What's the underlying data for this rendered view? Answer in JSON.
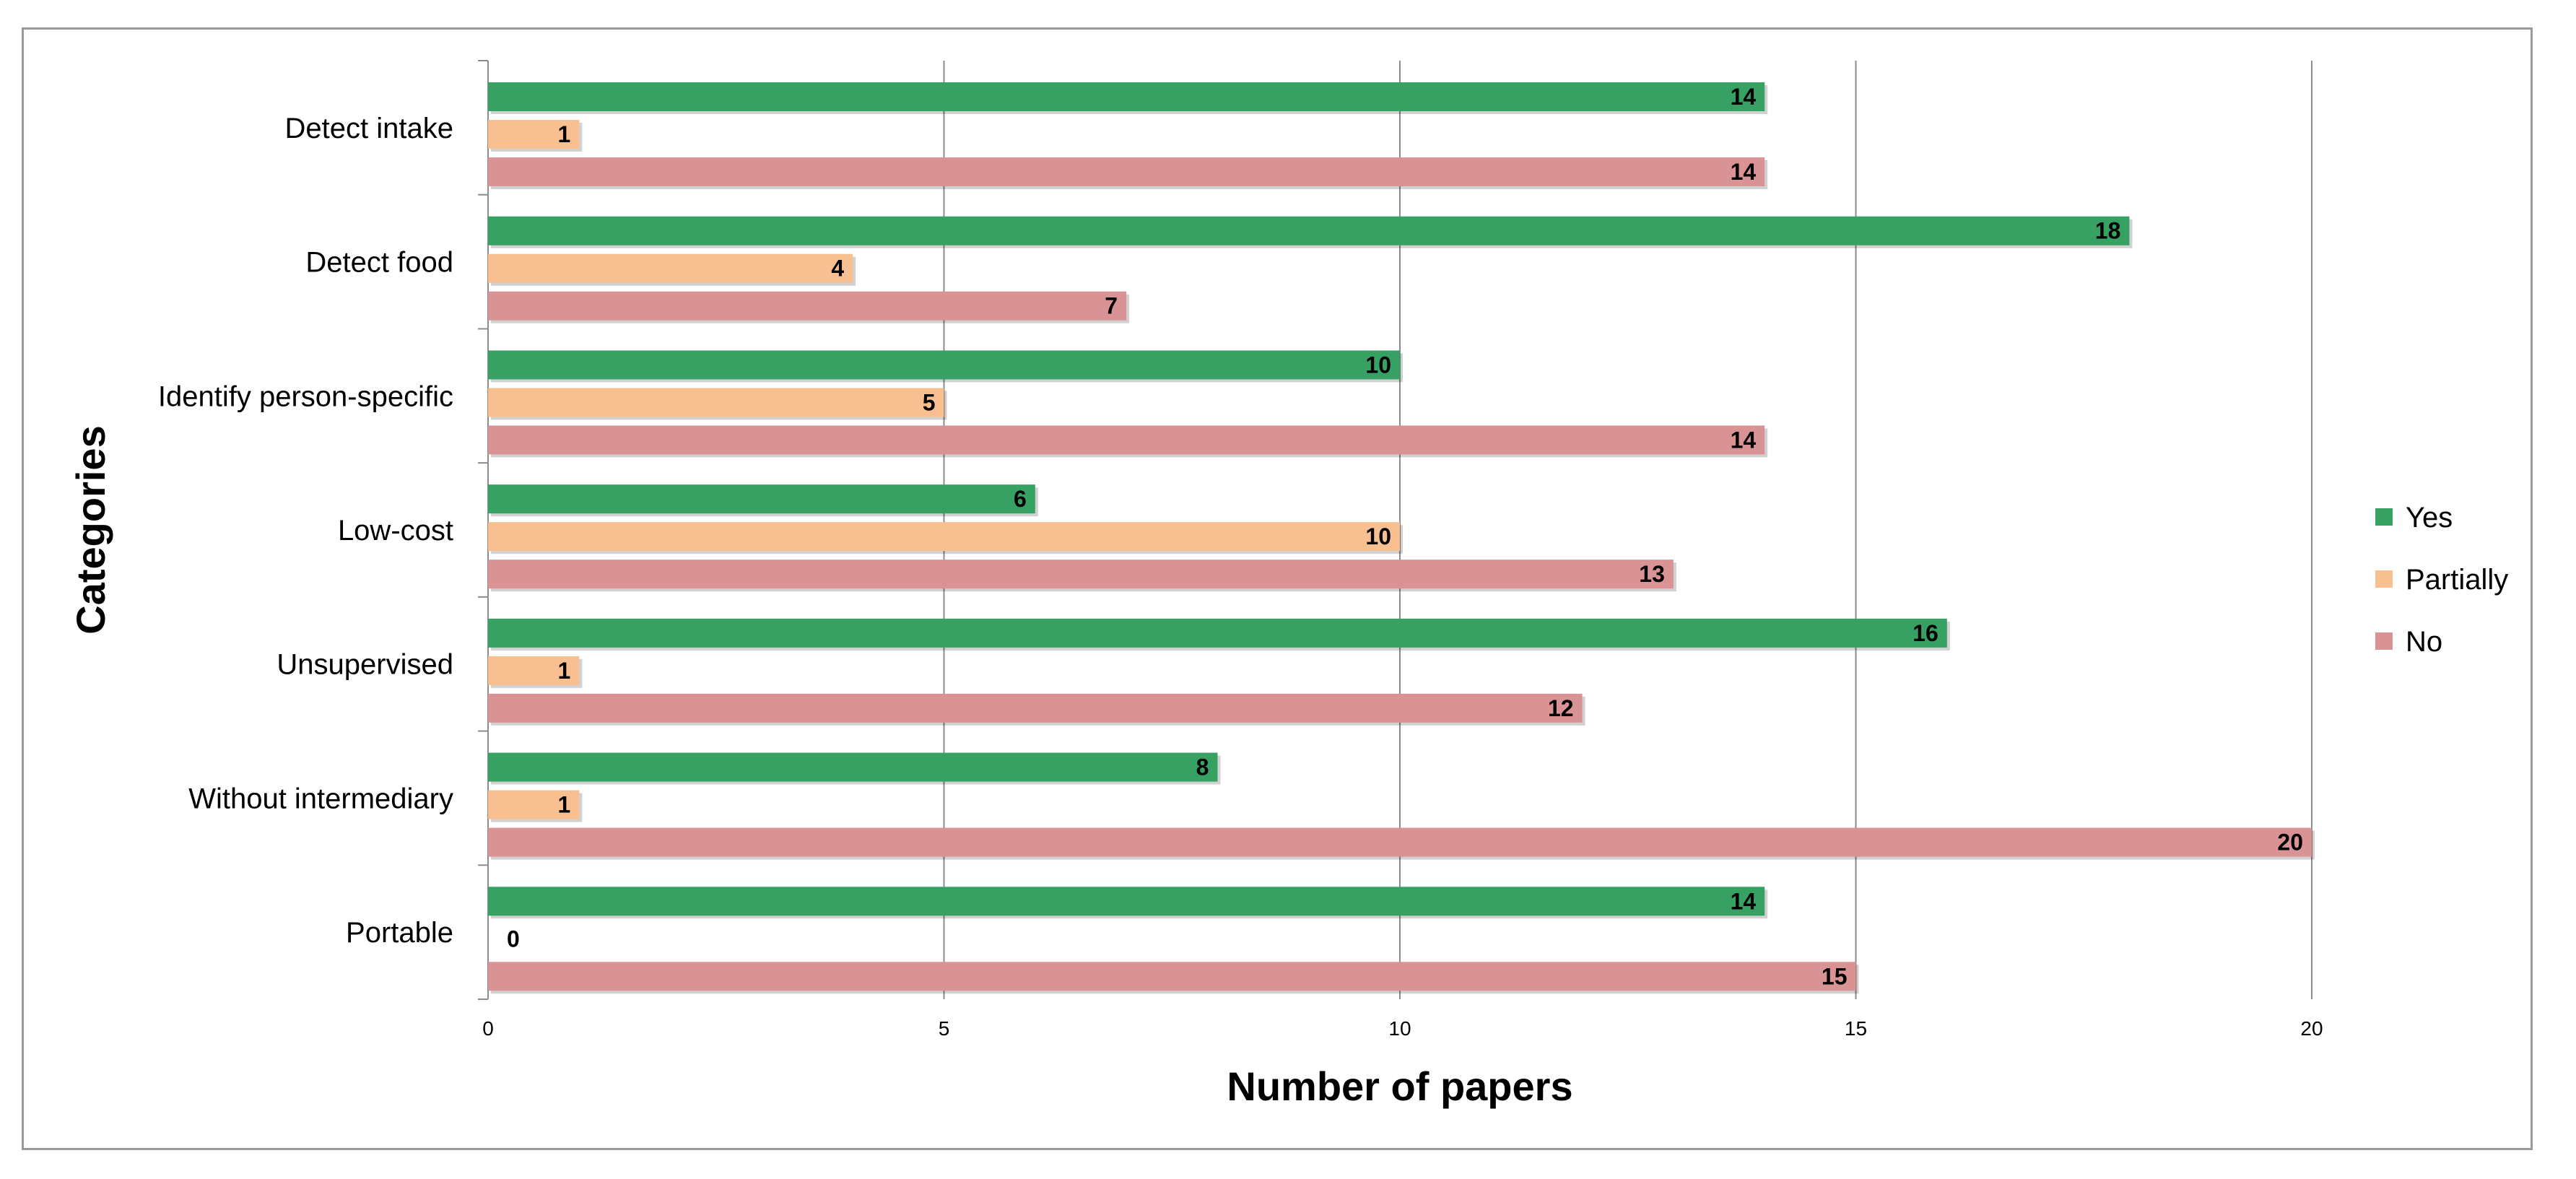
{
  "chart_data": {
    "type": "bar",
    "orientation": "horizontal",
    "xlabel": "Number of papers",
    "ylabel": "Categories",
    "xlim": [
      0,
      20
    ],
    "xticks": [
      0,
      5,
      10,
      15,
      20
    ],
    "grid": "vertical gridlines",
    "legend_position": "right",
    "categories": [
      "Detect intake",
      "Detect food",
      "Identify person-specific",
      "Low-cost",
      "Unsupervised",
      "Without intermediary",
      "Portable"
    ],
    "series": [
      {
        "name": "Yes",
        "color": "#36a162",
        "values": [
          14,
          18,
          10,
          6,
          16,
          8,
          14
        ]
      },
      {
        "name": "Partially",
        "color": "#f8c090",
        "values": [
          1,
          4,
          5,
          10,
          1,
          1,
          0
        ]
      },
      {
        "name": "No",
        "color": "#d99394",
        "values": [
          14,
          7,
          14,
          13,
          12,
          20,
          15
        ]
      }
    ]
  }
}
